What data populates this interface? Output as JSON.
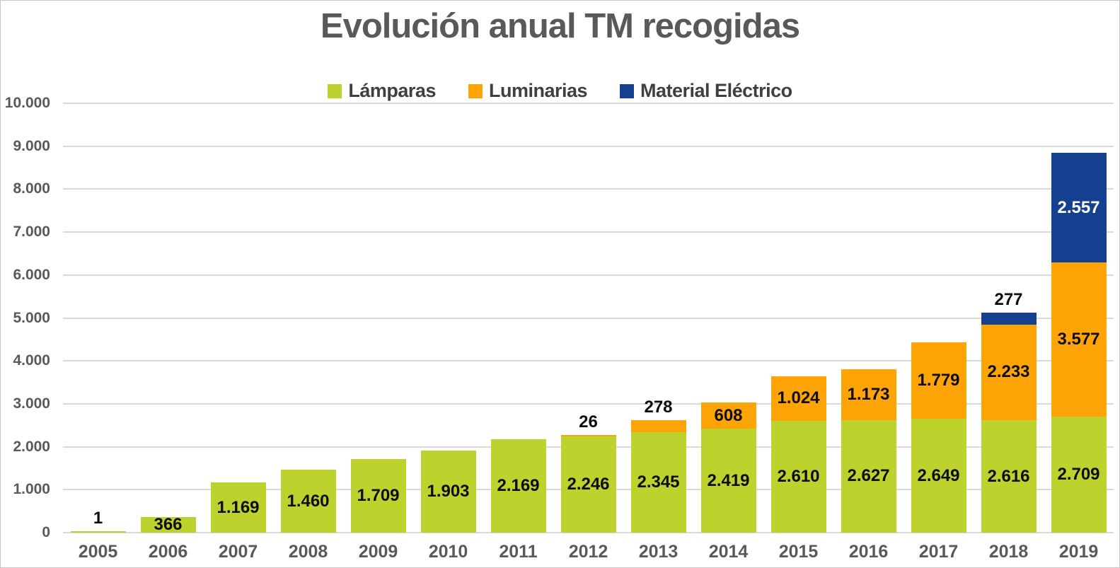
{
  "chart_data": {
    "type": "bar",
    "stacked": true,
    "title": "Evolución anual TM recogidas",
    "categories": [
      "2005",
      "2006",
      "2007",
      "2008",
      "2009",
      "2010",
      "2011",
      "2012",
      "2013",
      "2014",
      "2015",
      "2016",
      "2017",
      "2018",
      "2019"
    ],
    "series": [
      {
        "name": "Lámparas",
        "color": "#BDD22C",
        "inside_label_color": "#0D0D0D",
        "values": [
          1,
          366,
          1169,
          1460,
          1709,
          1903,
          2169,
          2246,
          2345,
          2419,
          2610,
          2627,
          2649,
          2616,
          2709
        ]
      },
      {
        "name": "Luminarias",
        "color": "#FFA407",
        "inside_label_color": "#0D0D0D",
        "values": [
          0,
          0,
          0,
          0,
          0,
          0,
          0,
          26,
          278,
          608,
          1024,
          1173,
          1779,
          2233,
          3577
        ]
      },
      {
        "name": "Material Eléctrico",
        "color": "#15408F",
        "inside_label_color": "#FFFFFF",
        "values": [
          0,
          0,
          0,
          0,
          0,
          0,
          0,
          0,
          0,
          0,
          0,
          0,
          0,
          277,
          2557
        ]
      }
    ],
    "data_labels_shown": true,
    "number_format": "thousands-dot",
    "xlabel": "",
    "ylabel": "",
    "ylim": [
      0,
      10000
    ],
    "ytick_step": 1000,
    "ytick_labels": [
      "0",
      "1.000",
      "2.000",
      "3.000",
      "4.000",
      "5.000",
      "6.000",
      "7.000",
      "8.000",
      "9.000",
      "10.000"
    ],
    "grid": true,
    "legend_position": "top-center",
    "colors": {
      "title_text": "#595959",
      "axis_text": "#595959",
      "legend_text": "#3F3F3F",
      "gridline": "#D9D9D9",
      "outside_label_text": "#0D0D0D",
      "background": "#FFFFFF"
    }
  }
}
